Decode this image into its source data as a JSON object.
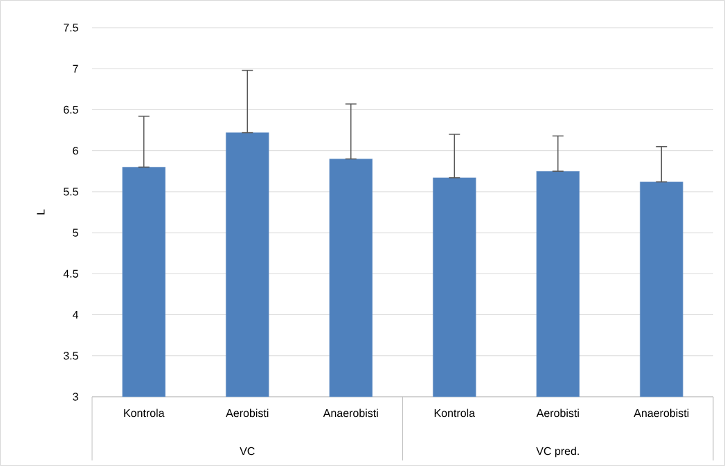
{
  "chart_data": {
    "type": "bar",
    "ylabel": "L",
    "categories": [
      "Kontrola",
      "Aerobisti",
      "Anaerobisti",
      "Kontrola",
      "Aerobisti",
      "Anaerobisti"
    ],
    "values": [
      5.8,
      6.22,
      5.9,
      5.67,
      5.75,
      5.62
    ],
    "errors": [
      [
        5.8,
        6.42
      ],
      [
        6.22,
        6.98
      ],
      [
        5.9,
        6.57
      ],
      [
        5.67,
        6.2
      ],
      [
        5.75,
        6.18
      ],
      [
        5.62,
        6.05
      ]
    ],
    "color": "#4f81bd",
    "ylim": [
      3,
      7.5
    ],
    "yticks": [
      3,
      3.5,
      4,
      4.5,
      5,
      5.5,
      6,
      6.5,
      7,
      7.5
    ],
    "grid": "y",
    "annotations": [
      "VC",
      "VC pred."
    ]
  }
}
